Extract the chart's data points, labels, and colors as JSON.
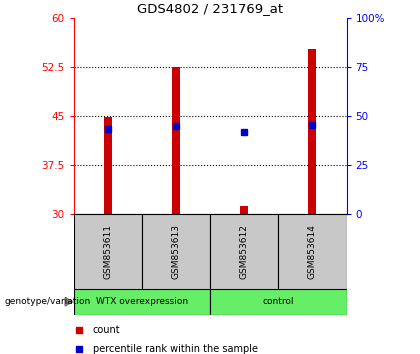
{
  "title": "GDS4802 / 231769_at",
  "samples": [
    "GSM853611",
    "GSM853613",
    "GSM853612",
    "GSM853614"
  ],
  "count_values": [
    44.8,
    52.5,
    31.3,
    55.2
  ],
  "percentile_values": [
    43.5,
    45.0,
    42.0,
    45.2
  ],
  "ylim_left": [
    30,
    60
  ],
  "ylim_right": [
    0,
    100
  ],
  "yticks_left": [
    30,
    37.5,
    45,
    52.5,
    60
  ],
  "yticks_right": [
    0,
    25,
    50,
    75,
    100
  ],
  "ytick_labels_right": [
    "0",
    "25",
    "50",
    "75",
    "100%"
  ],
  "bar_color": "#CC0000",
  "percentile_color": "#0000CC",
  "bar_width": 0.12,
  "grid_color": "black",
  "background_labels": "#C8C8C8",
  "group1_label": "WTX overexpression",
  "group2_label": "control",
  "group_color": "#66EE66",
  "genotype_label": "genotype/variation"
}
